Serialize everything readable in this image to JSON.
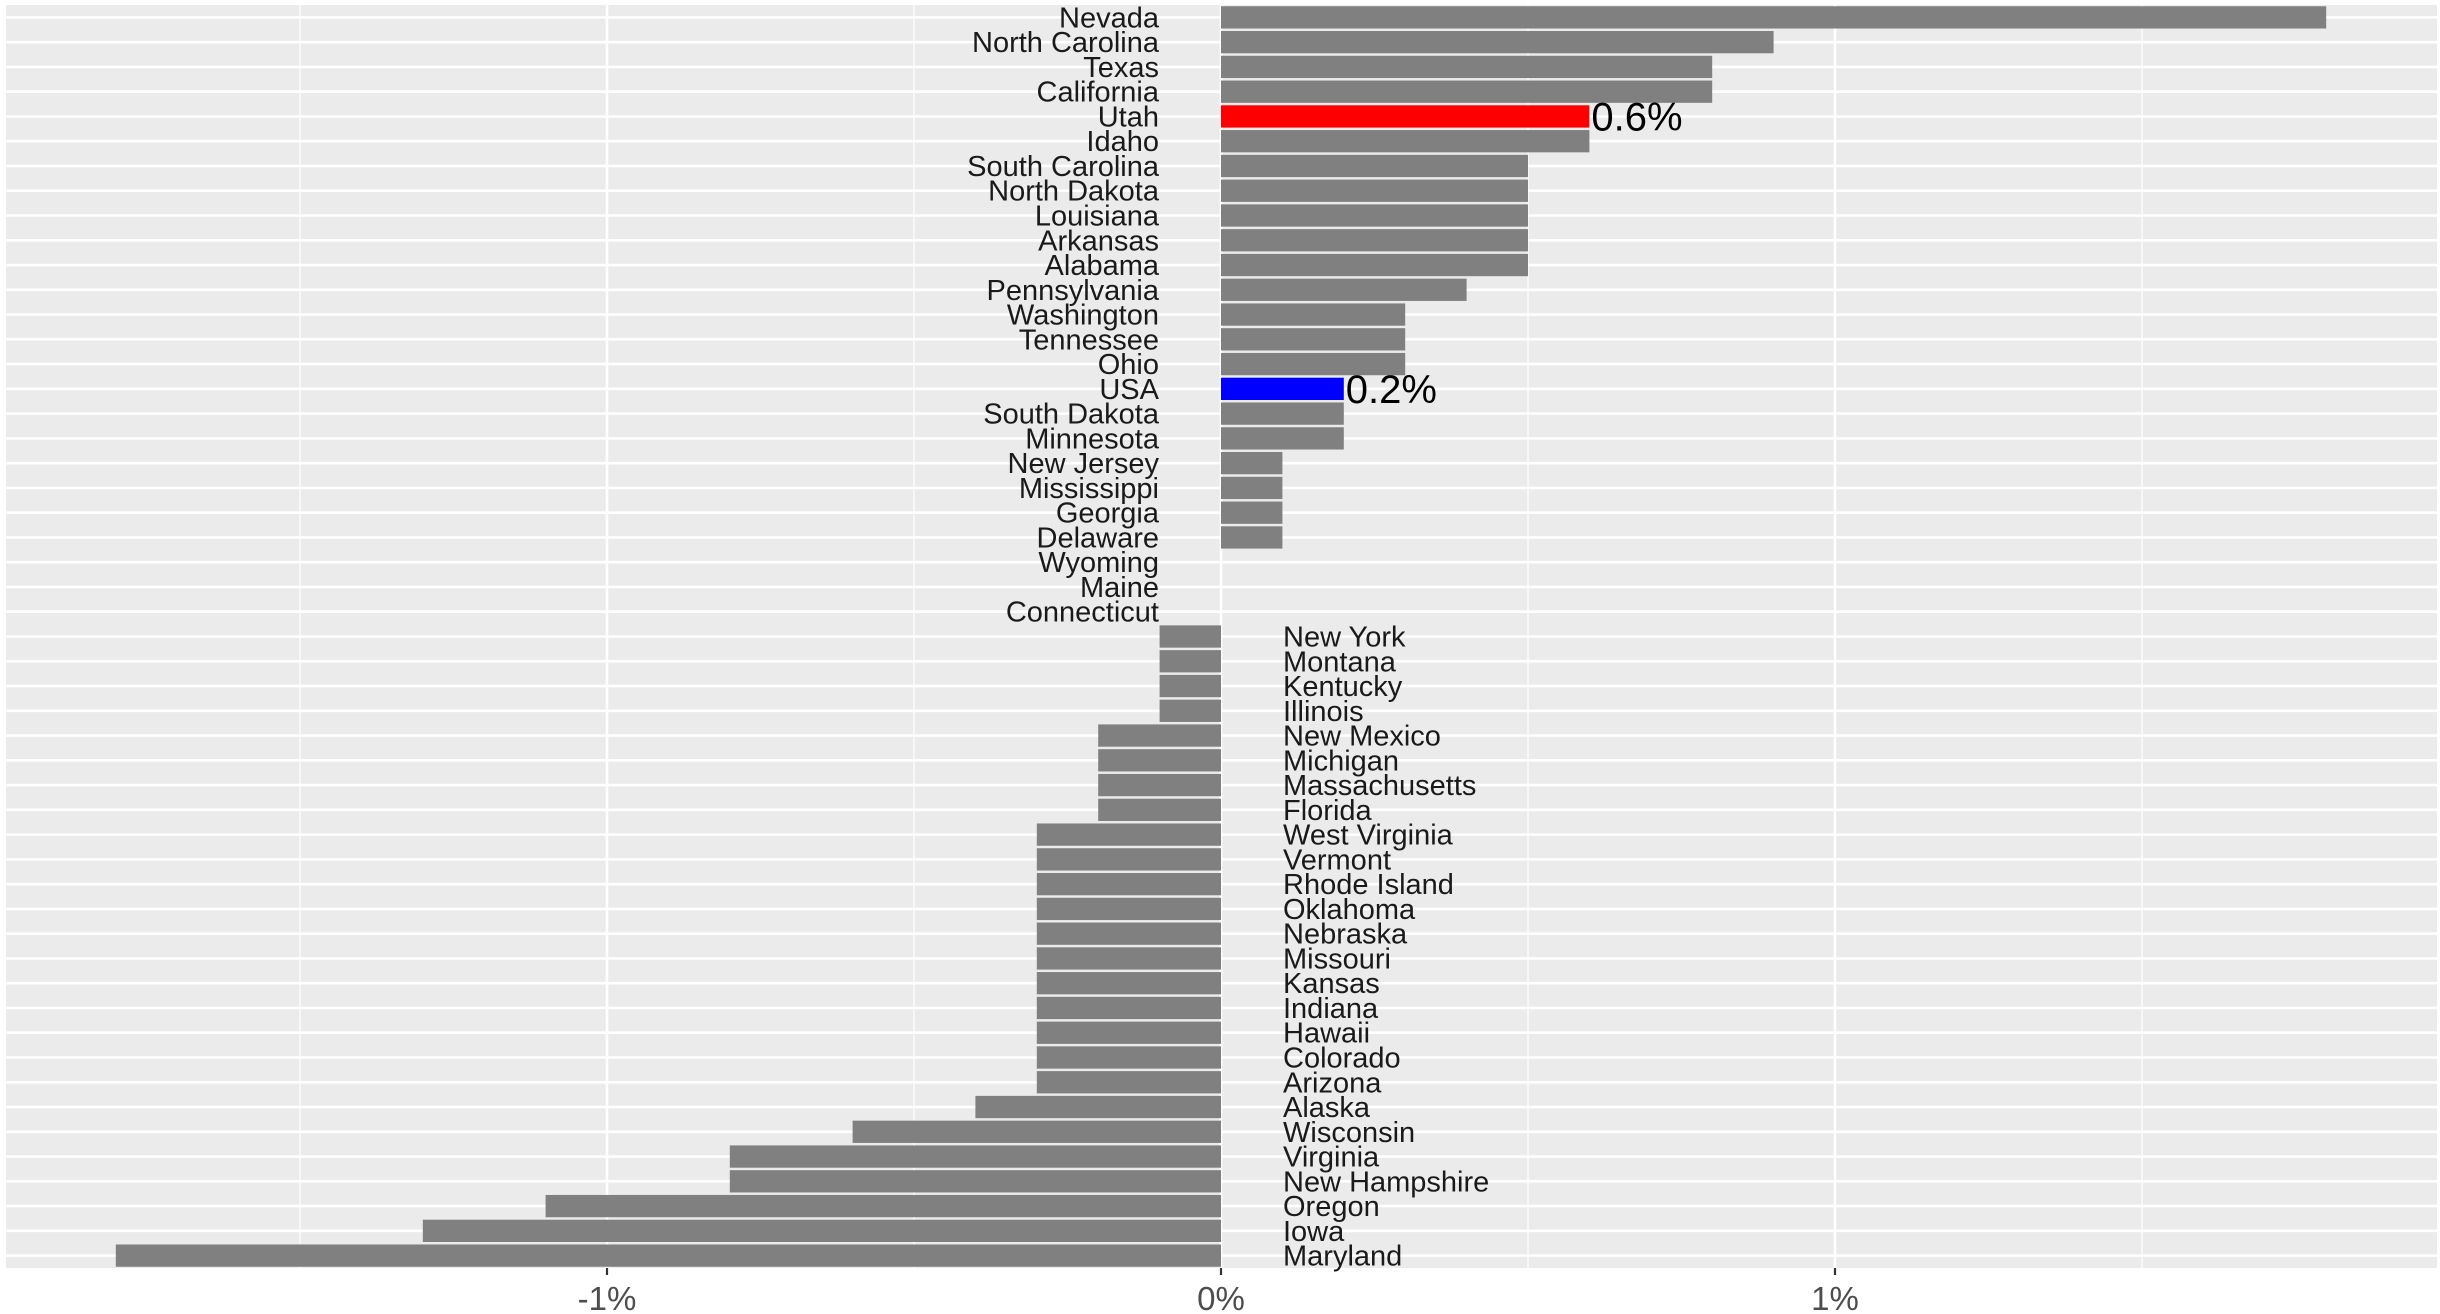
{
  "chart_data": {
    "type": "bar",
    "orientation": "horizontal",
    "title": "",
    "xlabel": "",
    "ylabel": "",
    "xlim": [
      -1.8,
      1.9
    ],
    "grid": true,
    "legend": "none",
    "x_ticks": [
      {
        "value": -1,
        "label": "-1%"
      },
      {
        "value": 0,
        "label": "0%"
      },
      {
        "value": 1,
        "label": "1%"
      }
    ],
    "colors": {
      "default": "#808080",
      "highlight": "#ff0000",
      "reference": "#0000ff",
      "panel": "#ebebeb",
      "grid": "#ffffff"
    },
    "bars": [
      {
        "category": "Nevada",
        "value": 1.8
      },
      {
        "category": "North Carolina",
        "value": 0.9
      },
      {
        "category": "Texas",
        "value": 0.8
      },
      {
        "category": "California",
        "value": 0.8
      },
      {
        "category": "Utah",
        "value": 0.6,
        "color": "highlight",
        "label": "0.6%"
      },
      {
        "category": "Idaho",
        "value": 0.6
      },
      {
        "category": "South Carolina",
        "value": 0.5
      },
      {
        "category": "North Dakota",
        "value": 0.5
      },
      {
        "category": "Louisiana",
        "value": 0.5
      },
      {
        "category": "Arkansas",
        "value": 0.5
      },
      {
        "category": "Alabama",
        "value": 0.5
      },
      {
        "category": "Pennsylvania",
        "value": 0.4
      },
      {
        "category": "Washington",
        "value": 0.3
      },
      {
        "category": "Tennessee",
        "value": 0.3
      },
      {
        "category": "Ohio",
        "value": 0.3
      },
      {
        "category": "USA",
        "value": 0.2,
        "color": "reference",
        "label": "0.2%"
      },
      {
        "category": "South Dakota",
        "value": 0.2
      },
      {
        "category": "Minnesota",
        "value": 0.2
      },
      {
        "category": "New Jersey",
        "value": 0.1
      },
      {
        "category": "Mississippi",
        "value": 0.1
      },
      {
        "category": "Georgia",
        "value": 0.1
      },
      {
        "category": "Delaware",
        "value": 0.1
      },
      {
        "category": "Wyoming",
        "value": 0.0
      },
      {
        "category": "Maine",
        "value": 0.0
      },
      {
        "category": "Connecticut",
        "value": 0.0
      },
      {
        "category": "New York",
        "value": -0.1
      },
      {
        "category": "Montana",
        "value": -0.1
      },
      {
        "category": "Kentucky",
        "value": -0.1
      },
      {
        "category": "Illinois",
        "value": -0.1
      },
      {
        "category": "New Mexico",
        "value": -0.2
      },
      {
        "category": "Michigan",
        "value": -0.2
      },
      {
        "category": "Massachusetts",
        "value": -0.2
      },
      {
        "category": "Florida",
        "value": -0.2
      },
      {
        "category": "West Virginia",
        "value": -0.3
      },
      {
        "category": "Vermont",
        "value": -0.3
      },
      {
        "category": "Rhode Island",
        "value": -0.3
      },
      {
        "category": "Oklahoma",
        "value": -0.3
      },
      {
        "category": "Nebraska",
        "value": -0.3
      },
      {
        "category": "Missouri",
        "value": -0.3
      },
      {
        "category": "Kansas",
        "value": -0.3
      },
      {
        "category": "Indiana",
        "value": -0.3
      },
      {
        "category": "Hawaii",
        "value": -0.3
      },
      {
        "category": "Colorado",
        "value": -0.3
      },
      {
        "category": "Arizona",
        "value": -0.3
      },
      {
        "category": "Alaska",
        "value": -0.4
      },
      {
        "category": "Wisconsin",
        "value": -0.6
      },
      {
        "category": "Virginia",
        "value": -0.8
      },
      {
        "category": "New Hampshire",
        "value": -0.8
      },
      {
        "category": "Oregon",
        "value": -1.1
      },
      {
        "category": "Iowa",
        "value": -1.3
      },
      {
        "category": "Maryland",
        "value": -1.8
      }
    ]
  }
}
